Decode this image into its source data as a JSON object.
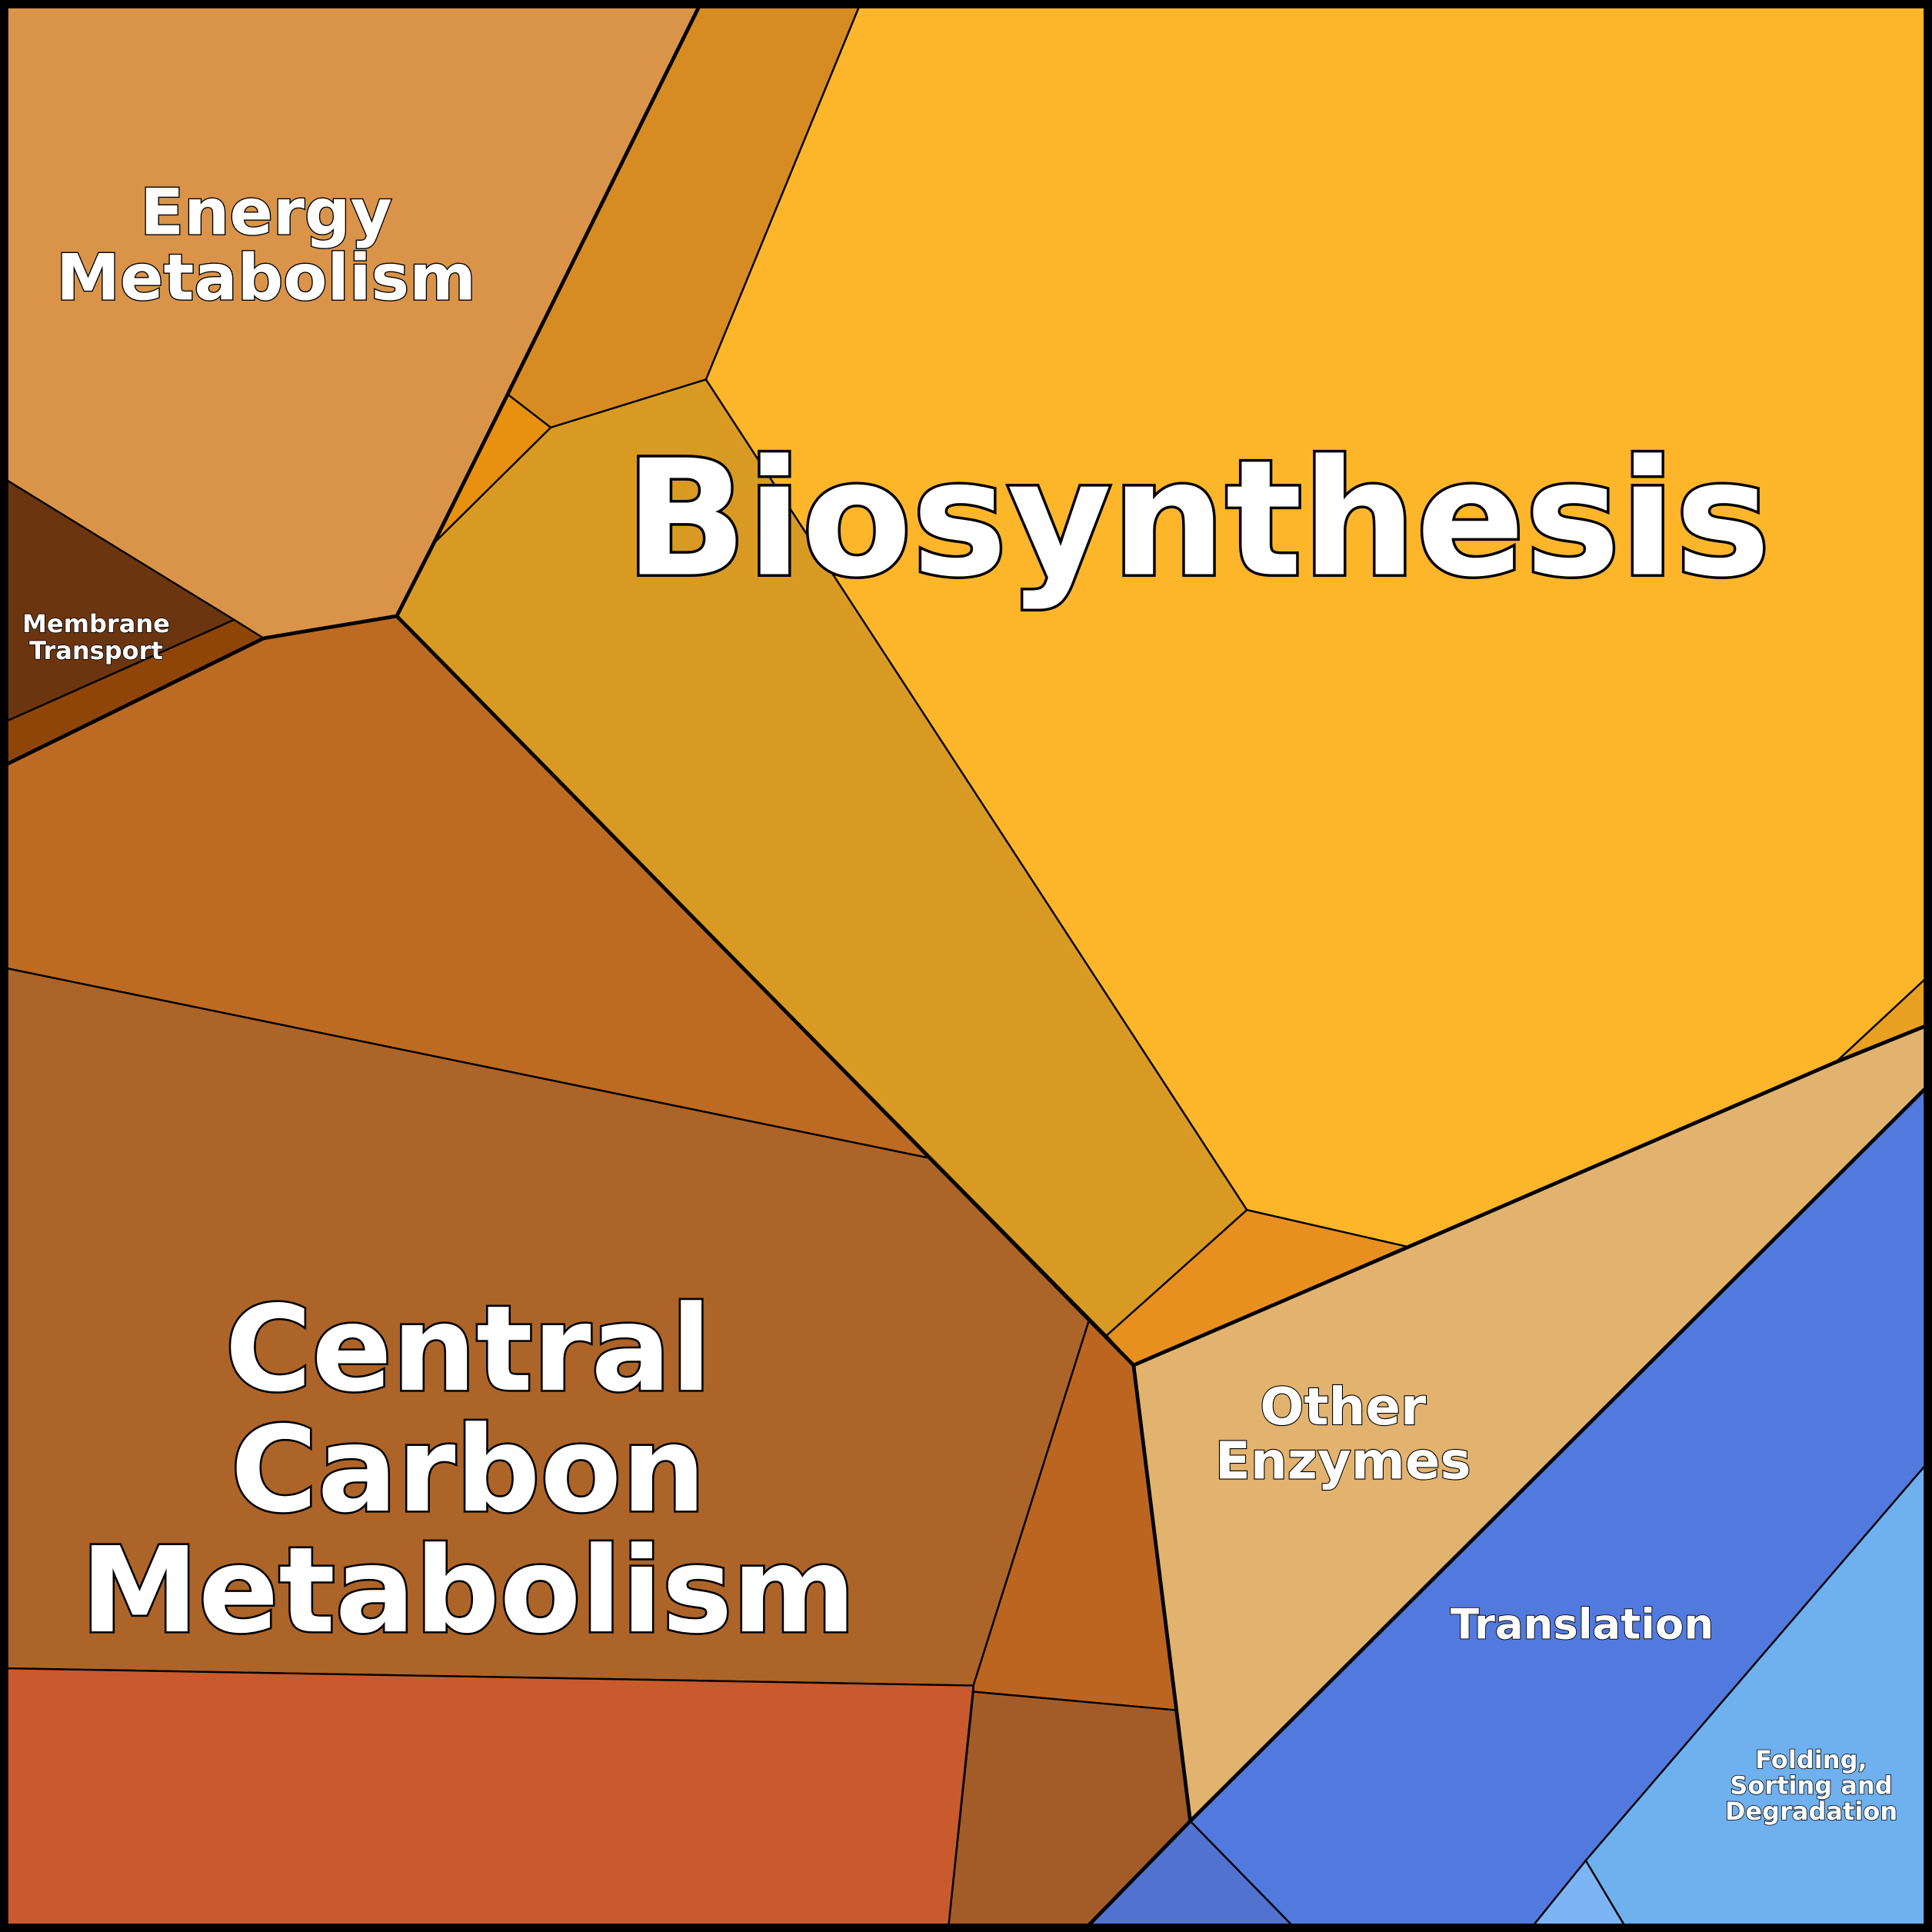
{
  "regions": [
    {
      "lines": [
        "Energy",
        "Metabolism"
      ]
    },
    {
      "lines": [
        "Biosynthesis"
      ]
    },
    {
      "lines": [
        "Membrane",
        "Transport"
      ]
    },
    {
      "lines": [
        "Central",
        "Carbon",
        "Metabolism"
      ]
    },
    {
      "lines": [
        "Other",
        "Enzymes"
      ]
    },
    {
      "lines": [
        "Translation"
      ]
    },
    {
      "lines": [
        "Folding,",
        "Sorting and",
        "Degradation"
      ]
    }
  ]
}
